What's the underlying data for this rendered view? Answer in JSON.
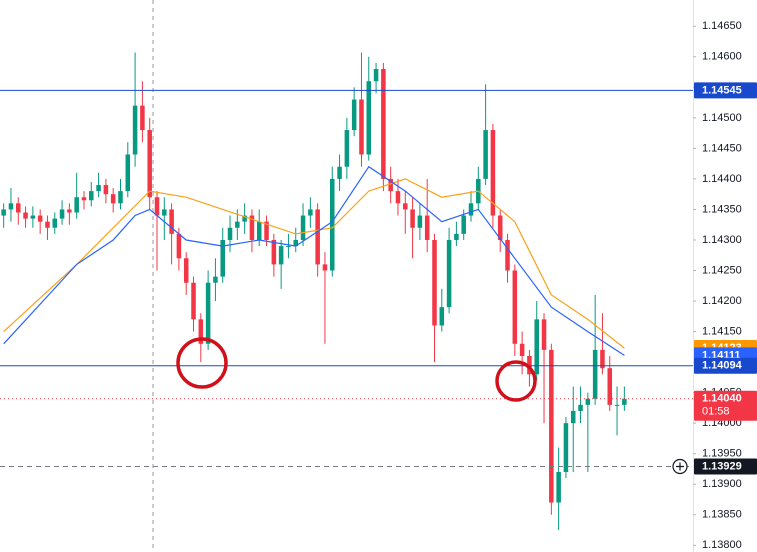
{
  "chart_data": {
    "type": "candlestick",
    "xlim": [
      -0.5,
      94.4
    ],
    "ylim": [
      1.13789,
      1.14693
    ],
    "yticks": [
      {
        "value": 1.138,
        "label": "1.13800"
      },
      {
        "value": 1.1385,
        "label": "1.13850"
      },
      {
        "value": 1.139,
        "label": "1.13900"
      },
      {
        "value": 1.1395,
        "label": "1.13950"
      },
      {
        "value": 1.14,
        "label": "1.14000"
      },
      {
        "value": 1.1405,
        "label": "1.14050"
      },
      {
        "value": 1.141,
        "label": "1.14100"
      },
      {
        "value": 1.1415,
        "label": "1.14150"
      },
      {
        "value": 1.142,
        "label": "1.14200"
      },
      {
        "value": 1.1425,
        "label": "1.14250"
      },
      {
        "value": 1.143,
        "label": "1.14300"
      },
      {
        "value": 1.1435,
        "label": "1.14350"
      },
      {
        "value": 1.144,
        "label": "1.14400"
      },
      {
        "value": 1.1445,
        "label": "1.14450"
      },
      {
        "value": 1.145,
        "label": "1.14500"
      },
      {
        "value": 1.1455,
        "label": "1.14550"
      },
      {
        "value": 1.146,
        "label": "1.14600"
      },
      {
        "value": 1.1465,
        "label": "1.14650"
      }
    ],
    "up_color": "#089981",
    "down_color": "#f23645",
    "open": [
      1.1434,
      1.1435,
      1.1436,
      1.14345,
      1.14335,
      1.1434,
      1.1433,
      1.1432,
      1.14335,
      1.1435,
      1.14345,
      1.1437,
      1.14365,
      1.1438,
      1.1439,
      1.14375,
      1.1436,
      1.1438,
      1.1444,
      1.1452,
      1.1448,
      1.1437,
      1.1434,
      1.1435,
      1.1431,
      1.1427,
      1.1423,
      1.1417,
      1.1413,
      1.1423,
      1.1424,
      1.143,
      1.1432,
      1.1433,
      1.1434,
      1.143,
      1.1433,
      1.143,
      1.1426,
      1.1429,
      1.1429,
      1.143,
      1.1434,
      1.1435,
      1.1426,
      1.1425,
      1.144,
      1.1442,
      1.1448,
      1.1453,
      1.1444,
      1.1456,
      1.1458,
      1.144,
      1.1438,
      1.1436,
      1.1435,
      1.1432,
      1.1434,
      1.143,
      1.1416,
      1.1419,
      1.143,
      1.1431,
      1.1434,
      1.1436,
      1.144,
      1.1448,
      1.1434,
      1.143,
      1.1425,
      1.1413,
      1.1411,
      1.1408,
      1.1417,
      1.1412,
      1.1387,
      1.1392,
      1.14,
      1.1402,
      1.1403,
      1.1404,
      1.1412,
      1.1409,
      1.1403,
      1.1403
    ],
    "high": [
      1.1436,
      1.14385,
      1.1437,
      1.14355,
      1.14355,
      1.1435,
      1.1434,
      1.14345,
      1.14365,
      1.1436,
      1.1441,
      1.1438,
      1.14395,
      1.1441,
      1.144,
      1.14385,
      1.144,
      1.1446,
      1.14607,
      1.1456,
      1.145,
      1.1438,
      1.1437,
      1.1436,
      1.1432,
      1.1428,
      1.1424,
      1.1418,
      1.1425,
      1.1427,
      1.1432,
      1.1434,
      1.1435,
      1.1436,
      1.1435,
      1.1435,
      1.1434,
      1.1431,
      1.143,
      1.1431,
      1.1432,
      1.1436,
      1.1437,
      1.1436,
      1.1428,
      1.1442,
      1.1444,
      1.145,
      1.1455,
      1.14607,
      1.146,
      1.1459,
      1.1459,
      1.1442,
      1.144,
      1.1438,
      1.1437,
      1.1436,
      1.144,
      1.1431,
      1.1422,
      1.1432,
      1.1433,
      1.1435,
      1.1438,
      1.1442,
      1.14555,
      1.1449,
      1.1435,
      1.1431,
      1.1426,
      1.1415,
      1.1412,
      1.142,
      1.1418,
      1.1413,
      1.1396,
      1.1401,
      1.1406,
      1.1406,
      1.1405,
      1.1421,
      1.1418,
      1.1411,
      1.1406,
      1.1406
    ],
    "low": [
      1.1432,
      1.1433,
      1.14325,
      1.1432,
      1.1432,
      1.1431,
      1.143,
      1.1431,
      1.14325,
      1.14325,
      1.14335,
      1.1435,
      1.14355,
      1.1437,
      1.1436,
      1.14345,
      1.1435,
      1.1437,
      1.1442,
      1.1446,
      1.1435,
      1.1425,
      1.143,
      1.1426,
      1.1425,
      1.1421,
      1.1415,
      1.141,
      1.1412,
      1.142,
      1.1423,
      1.1428,
      1.143,
      1.1431,
      1.1428,
      1.1429,
      1.1429,
      1.1424,
      1.1422,
      1.1427,
      1.1428,
      1.1429,
      1.1432,
      1.1424,
      1.1413,
      1.1424,
      1.1438,
      1.144,
      1.1447,
      1.1442,
      1.1443,
      1.1454,
      1.1438,
      1.1436,
      1.1434,
      1.1431,
      1.1427,
      1.143,
      1.1428,
      1.141,
      1.1415,
      1.1418,
      1.1429,
      1.143,
      1.1433,
      1.1435,
      1.1439,
      1.1432,
      1.1428,
      1.1423,
      1.1411,
      1.1408,
      1.1406,
      1.1407,
      1.14,
      1.1385,
      1.13825,
      1.1391,
      1.1392,
      1.14,
      1.1392,
      1.1403,
      1.1408,
      1.1402,
      1.1398,
      1.1402
    ],
    "close": [
      1.1435,
      1.1436,
      1.14345,
      1.14335,
      1.1434,
      1.1433,
      1.1432,
      1.14335,
      1.1435,
      1.14345,
      1.1437,
      1.14365,
      1.1438,
      1.1439,
      1.14375,
      1.1436,
      1.1438,
      1.1444,
      1.1452,
      1.1448,
      1.1437,
      1.1434,
      1.1435,
      1.1431,
      1.1427,
      1.1423,
      1.1417,
      1.1413,
      1.1423,
      1.1424,
      1.143,
      1.1432,
      1.1433,
      1.1434,
      1.143,
      1.1433,
      1.143,
      1.1426,
      1.1429,
      1.1429,
      1.143,
      1.1434,
      1.1435,
      1.1426,
      1.1425,
      1.144,
      1.1442,
      1.1448,
      1.1453,
      1.1444,
      1.1456,
      1.1458,
      1.144,
      1.1438,
      1.1436,
      1.1435,
      1.1432,
      1.1434,
      1.143,
      1.1416,
      1.1419,
      1.143,
      1.1431,
      1.1434,
      1.1436,
      1.144,
      1.1448,
      1.1434,
      1.143,
      1.1425,
      1.1413,
      1.1411,
      1.1408,
      1.1417,
      1.1412,
      1.1387,
      1.1392,
      1.14,
      1.1402,
      1.1403,
      1.1404,
      1.1412,
      1.1409,
      1.1403,
      1.1403,
      1.1404
    ],
    "lines": [
      {
        "color": "#f7a21b",
        "x": [
          0,
          10,
          15,
          20,
          25,
          30,
          35,
          40,
          45,
          50,
          55,
          60,
          65,
          70,
          75,
          80,
          85
        ],
        "values": [
          1.1415,
          1.1426,
          1.1432,
          1.1438,
          1.1437,
          1.1435,
          1.1433,
          1.1431,
          1.1432,
          1.1438,
          1.144,
          1.1437,
          1.1438,
          1.1433,
          1.1421,
          1.1417,
          1.14123
        ]
      },
      {
        "color": "#2962ff",
        "x": [
          0,
          10,
          15,
          18,
          20,
          25,
          30,
          35,
          40,
          45,
          50,
          55,
          60,
          65,
          70,
          75,
          80,
          85
        ],
        "values": [
          1.1413,
          1.1426,
          1.143,
          1.1434,
          1.1435,
          1.143,
          1.1429,
          1.143,
          1.1429,
          1.1433,
          1.1442,
          1.1438,
          1.1433,
          1.1435,
          1.1427,
          1.1419,
          1.1415,
          1.14111
        ]
      }
    ],
    "markers": [
      {
        "value": 1.14545,
        "color": "#1848cc",
        "line": "solid"
      },
      {
        "value": 1.14123,
        "color": "#ff9800"
      },
      {
        "value": 1.14111,
        "color": "#2962ff"
      },
      {
        "value": 1.14094,
        "color": "#1848cc",
        "line": "solid"
      },
      {
        "value": 1.1404,
        "label": "1.14040",
        "countdown": "01:58",
        "color": "#f23645",
        "line": "dotted"
      },
      {
        "value": 1.13929,
        "color": "#131722",
        "line": "dashed"
      }
    ]
  }
}
